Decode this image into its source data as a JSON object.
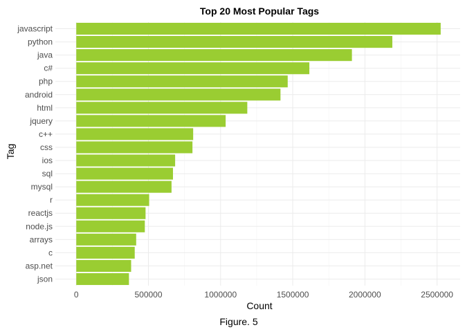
{
  "chart_data": {
    "type": "bar",
    "orientation": "horizontal",
    "title": "Top 20 Most Popular Tags",
    "xlabel": "Count",
    "ylabel": "Tag",
    "caption": "Figure. 5",
    "categories": [
      "javascript",
      "python",
      "java",
      "c#",
      "php",
      "android",
      "html",
      "jquery",
      "c++",
      "css",
      "ios",
      "sql",
      "mysql",
      "r",
      "reactjs",
      "node.js",
      "arrays",
      "c",
      "asp.net",
      "json"
    ],
    "values": [
      2525000,
      2190000,
      1910000,
      1615000,
      1465000,
      1415000,
      1185000,
      1035000,
      810000,
      805000,
      685000,
      670000,
      660000,
      505000,
      480000,
      475000,
      415000,
      405000,
      380000,
      365000
    ],
    "xlim": [
      -145000,
      2660000
    ],
    "xticks": [
      0,
      500000,
      1000000,
      1500000,
      2000000,
      2500000
    ],
    "xtick_labels": [
      "0",
      "500000",
      "1000000",
      "1500000",
      "2000000",
      "2500000"
    ],
    "grid": true,
    "bar_color": "#9acd32",
    "grid_color": "#ebebeb"
  }
}
